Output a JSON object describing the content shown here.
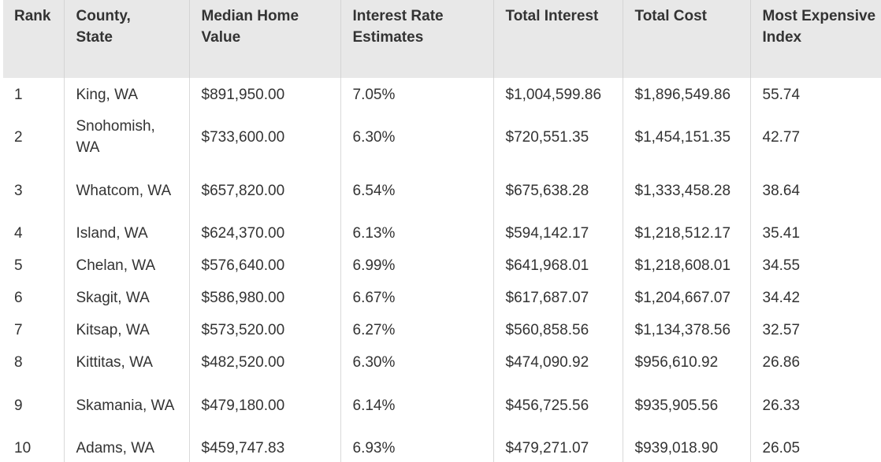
{
  "table": {
    "headers": [
      "Rank",
      "County, State",
      "Median Home Value",
      "Interest Rate Estimates",
      "Total Interest",
      "Total Cost",
      "Most Expensive Index"
    ],
    "rows": [
      [
        "1",
        "King, WA",
        "$891,950.00",
        "7.05%",
        "$1,004,599.86",
        "$1,896,549.86",
        "55.74"
      ],
      [
        "2",
        "Snohomish, WA",
        "$733,600.00",
        "6.30%",
        "$720,551.35",
        "$1,454,151.35",
        "42.77"
      ],
      [
        "3",
        "Whatcom, WA",
        "$657,820.00",
        "6.54%",
        "$675,638.28",
        "$1,333,458.28",
        "38.64"
      ],
      [
        "4",
        "Island, WA",
        "$624,370.00",
        "6.13%",
        "$594,142.17",
        "$1,218,512.17",
        "35.41"
      ],
      [
        "5",
        "Chelan, WA",
        "$576,640.00",
        "6.99%",
        "$641,968.01",
        "$1,218,608.01",
        "34.55"
      ],
      [
        "6",
        "Skagit, WA",
        "$586,980.00",
        "6.67%",
        "$617,687.07",
        "$1,204,667.07",
        "34.42"
      ],
      [
        "7",
        "Kitsap, WA",
        "$573,520.00",
        "6.27%",
        "$560,858.56",
        "$1,134,378.56",
        "32.57"
      ],
      [
        "8",
        "Kittitas, WA",
        "$482,520.00",
        "6.30%",
        "$474,090.92",
        "$956,610.92",
        "26.86"
      ],
      [
        "9",
        "Skamania, WA",
        "$479,180.00",
        "6.14%",
        "$456,725.56",
        "$935,905.56",
        "26.33"
      ],
      [
        "10",
        "Adams, WA",
        "$459,747.83",
        "6.93%",
        "$479,271.07",
        "$939,018.90",
        "26.05"
      ]
    ]
  }
}
